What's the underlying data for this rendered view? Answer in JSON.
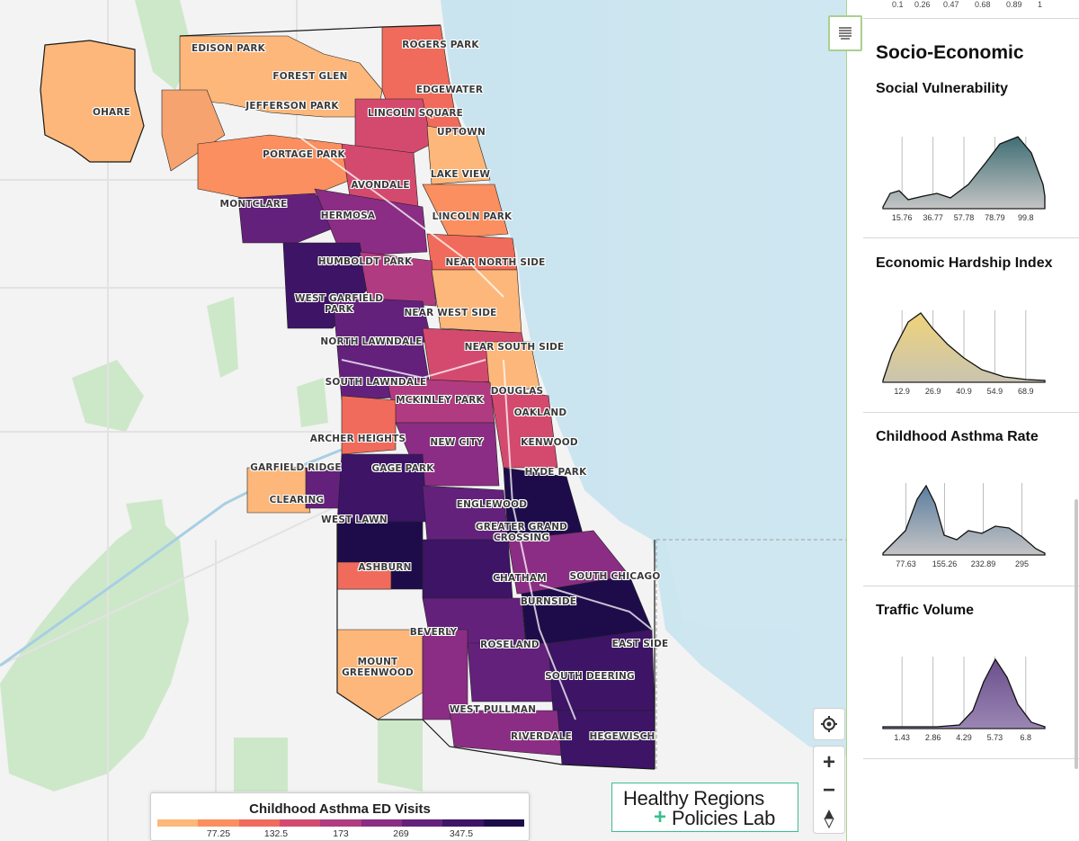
{
  "legend": {
    "title": "Childhood Asthma ED Visits",
    "ticks": [
      "77.25",
      "132.5",
      "173",
      "269",
      "347.5"
    ],
    "colors": [
      "#fdb77a",
      "#fb8f5f",
      "#f06b5b",
      "#d44a6e",
      "#b13b80",
      "#8b2d84",
      "#63217c",
      "#3d1466",
      "#1e0c4a"
    ]
  },
  "logo": {
    "line1": "Healthy Regions",
    "plus": "+",
    "line2": "Policies Lab",
    "accent": "#38c08d"
  },
  "neighborhoods": [
    {
      "name": "ROGERS PARK"
    },
    {
      "name": "EDISON PARK"
    },
    {
      "name": "FOREST GLEN"
    },
    {
      "name": "EDGEWATER"
    },
    {
      "name": "OHARE"
    },
    {
      "name": "JEFFERSON PARK"
    },
    {
      "name": "LINCOLN SQUARE"
    },
    {
      "name": "UPTOWN"
    },
    {
      "name": "PORTAGE PARK"
    },
    {
      "name": "LAKE VIEW"
    },
    {
      "name": "AVONDALE"
    },
    {
      "name": "MONTCLARE"
    },
    {
      "name": "HERMOSA"
    },
    {
      "name": "LINCOLN PARK"
    },
    {
      "name": "HUMBOLDT PARK"
    },
    {
      "name": "NEAR NORTH SIDE"
    },
    {
      "name": "WEST GARFIELD\nPARK"
    },
    {
      "name": "NEAR WEST SIDE"
    },
    {
      "name": "NORTH LAWNDALE"
    },
    {
      "name": "NEAR SOUTH SIDE"
    },
    {
      "name": "SOUTH LAWNDALE"
    },
    {
      "name": "DOUGLAS"
    },
    {
      "name": "MCKINLEY PARK"
    },
    {
      "name": "OAKLAND"
    },
    {
      "name": "ARCHER HEIGHTS"
    },
    {
      "name": "NEW CITY"
    },
    {
      "name": "KENWOOD"
    },
    {
      "name": "GARFIELD RIDGE"
    },
    {
      "name": "GAGE PARK"
    },
    {
      "name": "HYDE PARK"
    },
    {
      "name": "CLEARING"
    },
    {
      "name": "ENGLEWOOD"
    },
    {
      "name": "WEST LAWN"
    },
    {
      "name": "GREATER GRAND\nCROSSING"
    },
    {
      "name": "ASHBURN"
    },
    {
      "name": "CHATHAM"
    },
    {
      "name": "SOUTH CHICAGO"
    },
    {
      "name": "BURNSIDE"
    },
    {
      "name": "BEVERLY"
    },
    {
      "name": "ROSELAND"
    },
    {
      "name": "EAST SIDE"
    },
    {
      "name": "MOUNT\nGREENWOOD"
    },
    {
      "name": "SOUTH DEERING"
    },
    {
      "name": "WEST PULLMAN"
    },
    {
      "name": "RIVERDALE"
    },
    {
      "name": "HEGEWISCH"
    }
  ],
  "controls": {
    "zoom_in": "+",
    "zoom_out": "−",
    "compass": "▲"
  },
  "panel": {
    "top_scale_ticks": [
      "0.1",
      "0.26",
      "0.47",
      "0.68",
      "0.89",
      "1"
    ],
    "heading": "Socio-Economic",
    "charts": [
      {
        "title": "Social Vulnerability",
        "ticks": [
          "15.76",
          "36.77",
          "57.78",
          "78.79",
          "99.8"
        ],
        "color_top": "#3f6e74",
        "color_bottom": "#c4c4c4",
        "shape": "left-low-right-high"
      },
      {
        "title": "Economic Hardship Index",
        "ticks": [
          "12.9",
          "26.9",
          "40.9",
          "54.9",
          "68.9"
        ],
        "color_top": "#efd37a",
        "color_bottom": "#c9c4b0",
        "shape": "left-peak"
      },
      {
        "title": "Childhood Asthma Rate",
        "ticks": [
          "77.63",
          "155.26",
          "232.89",
          "295"
        ],
        "color_top": "#5c7ea0",
        "color_bottom": "#c4c4c4",
        "shape": "left-peak-shoulder"
      },
      {
        "title": "Traffic Volume",
        "ticks": [
          "1.43",
          "2.86",
          "4.29",
          "5.73",
          "6.8"
        ],
        "color_top": "#6b4f8c",
        "color_bottom": "#9a86b3",
        "shape": "right-peak"
      }
    ]
  }
}
